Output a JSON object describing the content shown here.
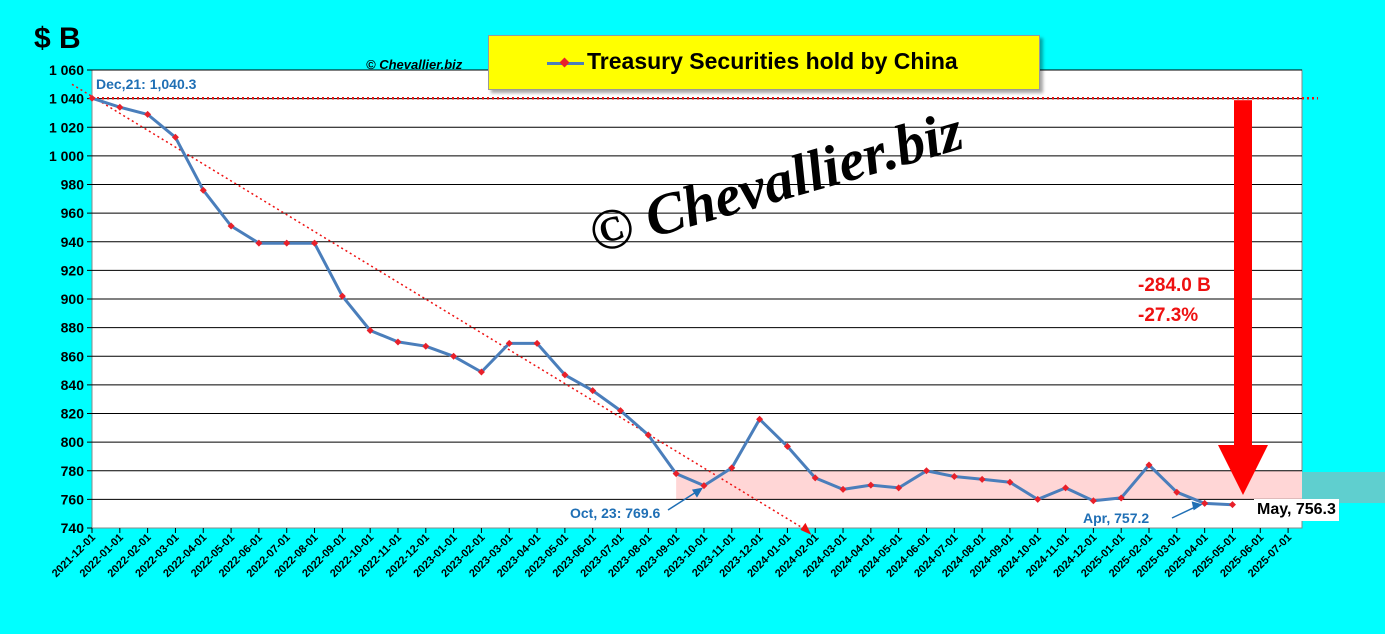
{
  "unit_label": "$ B",
  "copyright_small": "© Chevallier.biz",
  "watermark": "© Chevallier.biz",
  "legend": {
    "label": "Treasury Securities hold by China"
  },
  "colors": {
    "background": "#00ffff",
    "plot_background": "#ffffff",
    "line": "#4a7ebb",
    "marker": "#e8202a",
    "reference_line": "#ee1111",
    "range_band": "#ffd6d6",
    "arrow": "#ff0000",
    "annotation_text": "#1f6fb5"
  },
  "change": {
    "absolute": "-284.0 B",
    "percent": "-27.3%"
  },
  "last_value_label": "May, 756.3",
  "chart_data": {
    "type": "line",
    "title": "Treasury Securities hold by China",
    "xlabel": "",
    "ylabel": "$ B",
    "ylim": [
      740,
      1060
    ],
    "y_ticks": [
      740,
      760,
      780,
      800,
      820,
      840,
      860,
      880,
      900,
      920,
      940,
      960,
      980,
      1000,
      1020,
      1040,
      1060
    ],
    "y_tick_labels": [
      "740",
      "760",
      "780",
      "800",
      "820",
      "840",
      "860",
      "880",
      "900",
      "920",
      "940",
      "960",
      "980",
      "1 000",
      "1 020",
      "1 040",
      "1 060"
    ],
    "categories": [
      "2021-12-01",
      "2022-01-01",
      "2022-02-01",
      "2022-03-01",
      "2022-04-01",
      "2022-05-01",
      "2022-06-01",
      "2022-07-01",
      "2022-08-01",
      "2022-09-01",
      "2022-10-01",
      "2022-11-01",
      "2022-12-01",
      "2023-01-01",
      "2023-02-01",
      "2023-03-01",
      "2023-04-01",
      "2023-05-01",
      "2023-06-01",
      "2023-07-01",
      "2023-08-01",
      "2023-09-01",
      "2023-10-01",
      "2023-11-01",
      "2023-12-01",
      "2024-01-01",
      "2024-02-01",
      "2024-03-01",
      "2024-04-01",
      "2024-05-01",
      "2024-06-01",
      "2024-07-01",
      "2024-08-01",
      "2024-09-01",
      "2024-10-01",
      "2024-11-01",
      "2024-12-01",
      "2025-01-01",
      "2025-02-01",
      "2025-03-01",
      "2025-04-01",
      "2025-05-01",
      "2025-06-01",
      "2025-07-01"
    ],
    "series": [
      {
        "name": "Treasury Securities hold by China",
        "values": [
          1040.3,
          1034,
          1029,
          1013,
          976,
          951,
          939,
          939,
          939,
          902,
          878,
          870,
          867,
          860,
          849,
          869,
          869,
          847,
          836,
          822,
          805,
          778,
          769.6,
          782,
          816,
          797,
          775,
          767,
          770,
          768,
          780,
          776,
          774,
          772,
          760,
          768,
          759,
          761,
          784,
          765,
          757.2,
          756.3,
          null,
          null
        ]
      }
    ],
    "reference_level": 1040.3,
    "range_band": [
      760,
      780
    ],
    "trend_line": {
      "from": [
        "2021-12-01",
        1050
      ],
      "to": [
        "2024-01-01",
        738
      ]
    },
    "annotations": [
      {
        "text": "Dec,21: 1,040.3",
        "x": "2021-12-01",
        "y": 1040.3
      },
      {
        "text": "Oct, 23: 769.6",
        "x": "2023-10-01",
        "y": 769.6
      },
      {
        "text": "Apr, 757.2",
        "x": "2025-04-01",
        "y": 757.2
      },
      {
        "text": "May, 756.3",
        "x": "2025-05-01",
        "y": 756.3
      }
    ],
    "grid": true,
    "legend_position": "top-center"
  }
}
